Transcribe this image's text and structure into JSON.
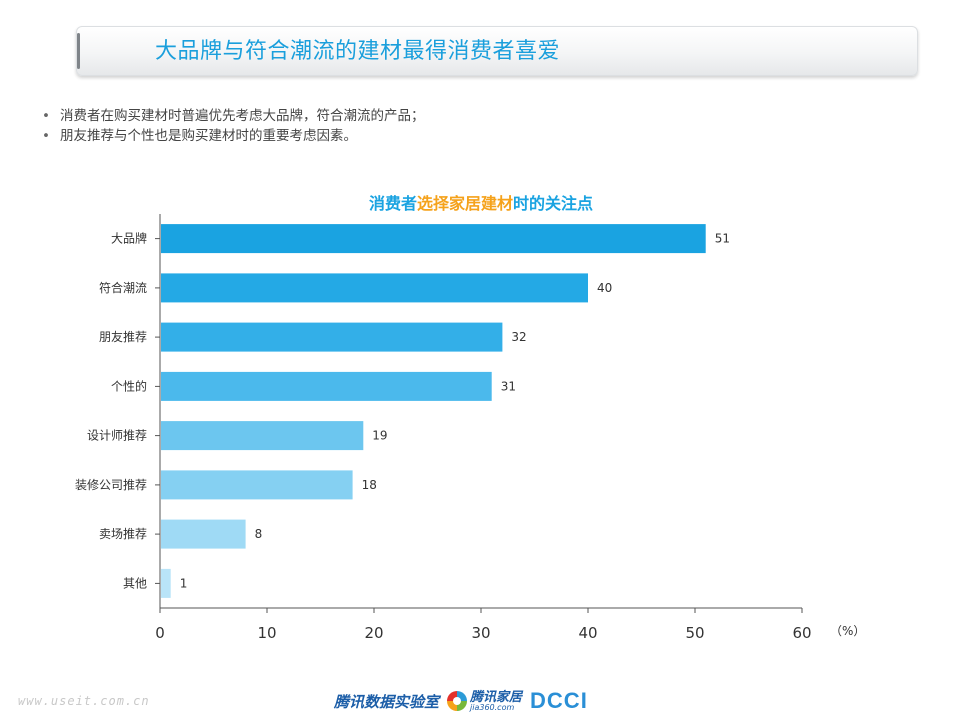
{
  "header": {
    "title": "大品牌与符合潮流的建材最得消费者喜爱"
  },
  "bullets": [
    "消费者在购买建材时普遍优先考虑大品牌，符合潮流的产品；",
    "朋友推荐与个性也是购买建材时的重要考虑因素。"
  ],
  "chart_data": {
    "type": "bar",
    "orientation": "horizontal",
    "title_parts": [
      "消费者",
      "选择家居建材",
      "时的关注点"
    ],
    "categories": [
      "大品牌",
      "符合潮流",
      "朋友推荐",
      "个性的",
      "设计师推荐",
      "装修公司推荐",
      "卖场推荐",
      "其他"
    ],
    "values": [
      51,
      40,
      32,
      31,
      19,
      18,
      8,
      1
    ],
    "xlim": [
      0,
      60
    ],
    "xticks": [
      0,
      10,
      20,
      30,
      40,
      50,
      60
    ],
    "unit_label": "（%）",
    "bar_colors": [
      "#1aa3e1",
      "#24a9e5",
      "#33afe8",
      "#4bb9ec",
      "#6cc6ef",
      "#85d0f2",
      "#9fdaf5",
      "#b9e4f8"
    ],
    "grid": false,
    "legend": "none",
    "data_labels": true
  },
  "footer": {
    "watermark": "www.useit.com.cn",
    "logo_lab": "腾讯数据实验室",
    "logo_jia_cn": "腾讯家居",
    "logo_jia_en": "jia360.com",
    "logo_dcci": "DCCI"
  }
}
